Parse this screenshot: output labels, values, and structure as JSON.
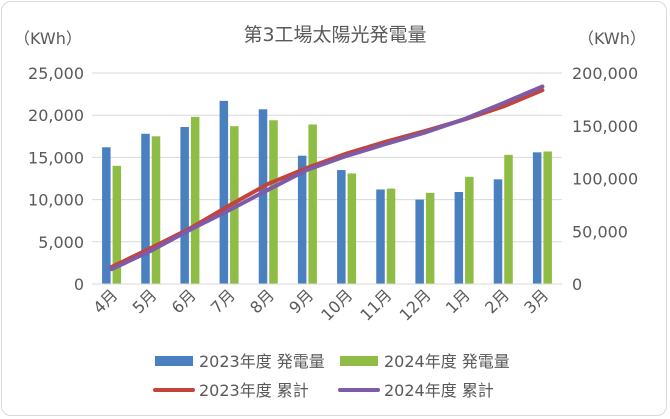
{
  "chart_data": {
    "type": "bar",
    "title": "第3工場太陽光発電量",
    "left_unit": "（KWh）",
    "right_unit": "（KWh）",
    "categories": [
      "4月",
      "5月",
      "6月",
      "7月",
      "8月",
      "9月",
      "10月",
      "11月",
      "12月",
      "1月",
      "2月",
      "3月"
    ],
    "left_axis": {
      "min": 0,
      "max": 25000,
      "ticks": [
        "0",
        "5,000",
        "10,000",
        "15,000",
        "20,000",
        "25,000"
      ]
    },
    "right_axis": {
      "min": 0,
      "max": 200000,
      "ticks": [
        "0",
        "50,000",
        "100,000",
        "150,000",
        "200,000"
      ]
    },
    "grid": true,
    "legend_position": "bottom",
    "bar_series": [
      {
        "name": "2023年度 発電量",
        "color": "#4a7fc0",
        "axis": "left",
        "values": [
          16200,
          17800,
          18600,
          21700,
          20700,
          15200,
          13500,
          11200,
          10000,
          10900,
          12400,
          15600
        ]
      },
      {
        "name": "2024年度 発電量",
        "color": "#8fbc45",
        "axis": "left",
        "values": [
          14000,
          17500,
          19800,
          18700,
          19400,
          18900,
          13100,
          11300,
          10800,
          12700,
          15300,
          15700
        ]
      }
    ],
    "line_series": [
      {
        "name": "2023年度 累計",
        "color": "#c4433b",
        "axis": "right",
        "values": [
          16200,
          34000,
          52600,
          74300,
          95000,
          110200,
          123700,
          134900,
          144900,
          155800,
          168200,
          183800
        ]
      },
      {
        "name": "2024年度 累計",
        "color": "#7d5ba6",
        "axis": "right",
        "values": [
          14000,
          31500,
          51300,
          70000,
          89400,
          108300,
          121400,
          132700,
          143500,
          156200,
          171500,
          187200
        ]
      }
    ]
  }
}
